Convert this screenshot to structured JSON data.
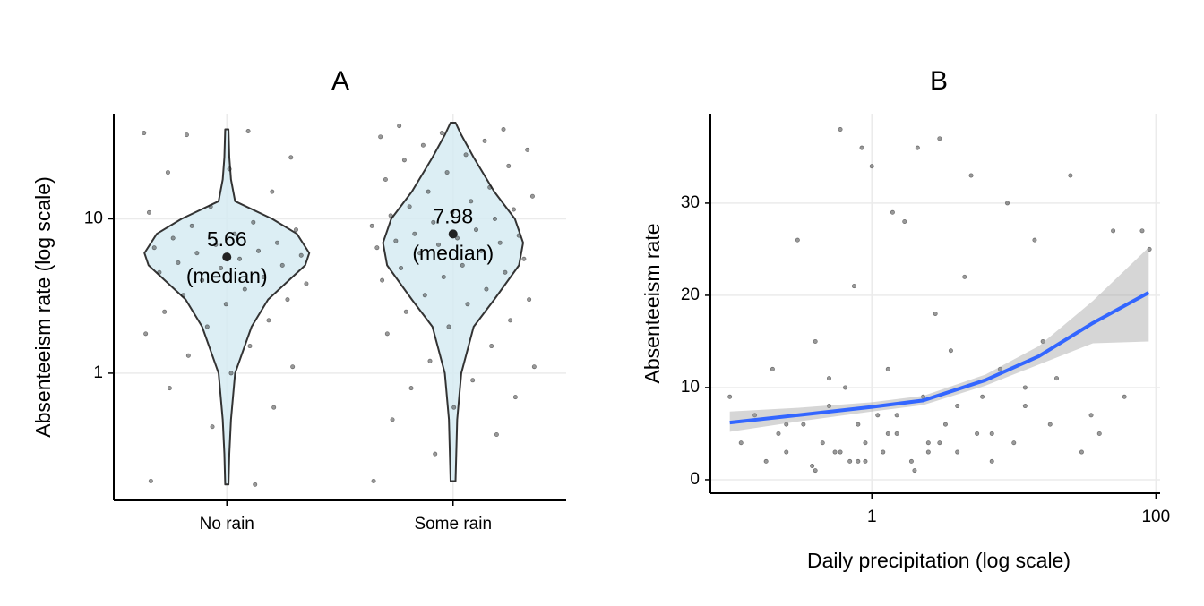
{
  "chart_data": [
    {
      "type": "violin",
      "title": "A",
      "y_label": "Absenteeism rate (log scale)",
      "categories": [
        "No rain",
        "Some rain"
      ],
      "ylog": true,
      "ylim": [
        0.15,
        48
      ],
      "yticks": [
        1,
        10
      ],
      "grid": true,
      "violin_color": "#d6ebf2",
      "point_color": "#333333",
      "groups": [
        {
          "median": 5.66,
          "median_label": "(median)",
          "violin": {
            "y": [
              0.19,
              0.3,
              0.5,
              1,
              2,
              3,
              5,
              6,
              8,
              10,
              13,
              18,
              25,
              38
            ],
            "width": [
              0.02,
              0.03,
              0.05,
              0.1,
              0.3,
              0.5,
              0.95,
              1.0,
              0.85,
              0.55,
              0.1,
              0.05,
              0.03,
              0.02
            ]
          },
          "values": [
            36,
            37,
            35,
            25,
            21,
            20,
            15,
            12,
            11,
            9.5,
            9,
            8.5,
            8,
            7.5,
            7,
            6.8,
            6.5,
            6.2,
            6,
            5.8,
            5.5,
            5.2,
            5,
            4.8,
            4.5,
            4.2,
            4,
            3.8,
            3.5,
            3.2,
            3,
            2.8,
            2.5,
            2.2,
            2,
            1.8,
            1.5,
            1.3,
            1.1,
            1.0,
            0.8,
            0.6,
            0.45,
            0.2,
            0.19
          ]
        },
        {
          "median": 7.98,
          "median_label": "(median)",
          "violin": {
            "y": [
              0.2,
              0.5,
              1,
              2,
              3,
              5,
              7,
              10,
              15,
              25,
              35,
              42
            ],
            "width": [
              0.03,
              0.05,
              0.1,
              0.25,
              0.5,
              0.8,
              0.85,
              0.75,
              0.5,
              0.25,
              0.1,
              0.03
            ]
          },
          "values": [
            40,
            38,
            36,
            34,
            32,
            30,
            28,
            26,
            24,
            22,
            20,
            18,
            16,
            15,
            14,
            13,
            12,
            11.5,
            11,
            10.5,
            10,
            9.5,
            9,
            8.5,
            8,
            7.8,
            7.5,
            7.2,
            7,
            6.8,
            6.5,
            6.2,
            6,
            5.5,
            5,
            4.8,
            4.5,
            4.2,
            4,
            3.5,
            3.2,
            3,
            2.8,
            2.5,
            2.2,
            2,
            1.8,
            1.5,
            1.2,
            1.1,
            0.9,
            0.8,
            0.7,
            0.6,
            0.5,
            0.4,
            0.3,
            0.2
          ]
        }
      ]
    },
    {
      "type": "scatter",
      "title": "B",
      "x_label": "Daily precipitation (log scale)",
      "y_label": "Absenteeism rate",
      "xlog": true,
      "xlim": [
        0.073,
        107
      ],
      "xticks": [
        1,
        100
      ],
      "ylim": [
        -1.46,
        39.7
      ],
      "yticks": [
        0,
        10,
        20,
        30
      ],
      "grid": true,
      "point_color": "#333333",
      "smooth_color": "#3366ff",
      "band_color": "#999999",
      "x": [
        0.1,
        0.12,
        0.15,
        0.18,
        0.2,
        0.22,
        0.25,
        0.3,
        0.33,
        0.38,
        0.4,
        0.45,
        0.5,
        0.55,
        0.6,
        0.65,
        0.7,
        0.75,
        0.8,
        0.85,
        0.9,
        1,
        1.1,
        1.2,
        1.3,
        1.4,
        1.5,
        1.7,
        1.9,
        2.1,
        2.3,
        2.5,
        2.8,
        3,
        3.3,
        3.6,
        4,
        4.5,
        5,
        5.5,
        6,
        7,
        8,
        9,
        10,
        12,
        14,
        16,
        18,
        20,
        25,
        30,
        35,
        40,
        50,
        60,
        80,
        90,
        0.4,
        0.6,
        0.9,
        1.3,
        2,
        3,
        0.25,
        0.5,
        0.8,
        1.5,
        2.5,
        4,
        7,
        12
      ],
      "values": [
        9,
        4,
        7,
        2,
        12,
        5,
        3,
        26,
        6,
        1.5,
        15,
        4,
        8,
        3,
        38,
        10,
        2,
        21,
        6,
        36,
        4,
        34,
        7,
        3,
        12,
        29,
        5,
        28,
        2,
        36,
        9,
        4,
        18,
        37,
        6,
        14,
        3,
        22,
        33,
        5,
        9,
        2,
        12,
        30,
        4,
        8,
        26,
        15,
        6,
        11,
        33,
        3,
        7,
        5,
        27,
        9,
        27,
        25,
        1,
        3,
        2,
        5,
        1,
        4,
        6,
        11,
        2,
        7,
        3,
        8,
        5,
        10
      ],
      "smooth": {
        "x": [
          0.1,
          0.3,
          1,
          2.3,
          6.3,
          15,
          36,
          89
        ],
        "y": [
          6.2,
          7,
          7.9,
          8.6,
          10.8,
          13.4,
          17,
          20.3
        ],
        "lower": [
          5.2,
          6.3,
          7.4,
          8.1,
          10.2,
          12.5,
          14.8,
          15
        ],
        "upper": [
          7.4,
          7.8,
          8.4,
          9.1,
          11.4,
          14.5,
          19.4,
          25.2
        ]
      }
    }
  ]
}
